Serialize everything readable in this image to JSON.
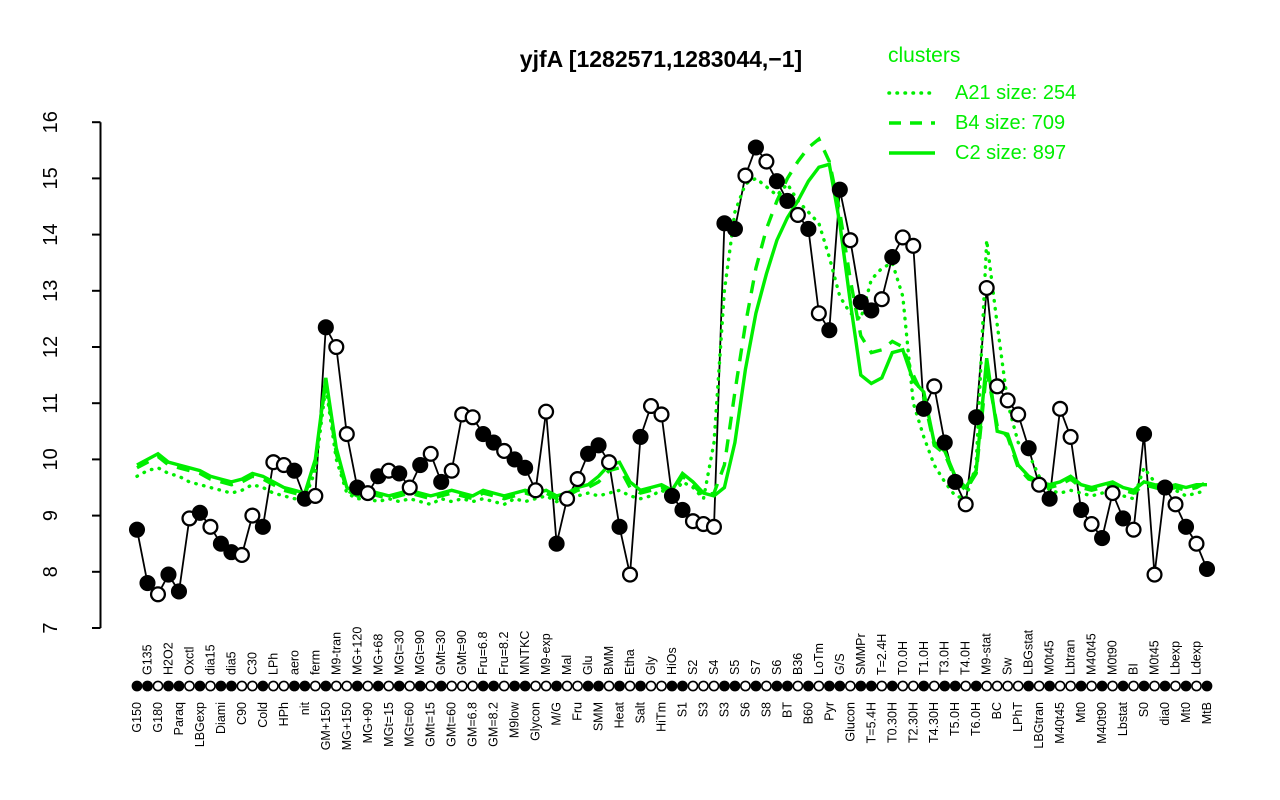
{
  "chart_data": {
    "type": "line",
    "title": "yjfA [1282571,1283044,−1]",
    "colors": {
      "cluster": "#00ee00",
      "expression": "#000000",
      "background": "#ffffff"
    },
    "legend": {
      "title": "clusters",
      "entries": [
        {
          "label": "A21 size: 254",
          "style": "dotted"
        },
        {
          "label": "B4 size: 709",
          "style": "dashed"
        },
        {
          "label": "C2 size: 897",
          "style": "solid"
        }
      ]
    },
    "y_axis": {
      "range": [
        7,
        16
      ],
      "ticks": [
        7,
        8,
        9,
        10,
        11,
        12,
        13,
        14,
        15,
        16
      ]
    },
    "x_axis": {
      "conditions": [
        {
          "l": "G150",
          "s": "b"
        },
        {
          "l": "G135",
          "s": "t"
        },
        {
          "l": "G180",
          "s": "b"
        },
        {
          "l": "H2O2",
          "s": "t"
        },
        {
          "l": "Paraq",
          "s": "b"
        },
        {
          "l": "Oxctl",
          "s": "t"
        },
        {
          "l": "LBGexp",
          "s": "b"
        },
        {
          "l": "dia15",
          "s": "t"
        },
        {
          "l": "Diami",
          "s": "b"
        },
        {
          "l": "dia5",
          "s": "t"
        },
        {
          "l": "C90",
          "s": "b"
        },
        {
          "l": "C30",
          "s": "t"
        },
        {
          "l": "Cold",
          "s": "b"
        },
        {
          "l": "LPh",
          "s": "t"
        },
        {
          "l": "HPh",
          "s": "b"
        },
        {
          "l": "aero",
          "s": "t"
        },
        {
          "l": "nit",
          "s": "b"
        },
        {
          "l": "ferm",
          "s": "t"
        },
        {
          "l": "GM+150",
          "s": "b"
        },
        {
          "l": "M9-tran",
          "s": "t"
        },
        {
          "l": "MG+150",
          "s": "b"
        },
        {
          "l": "MG+120",
          "s": "t"
        },
        {
          "l": "MG+90",
          "s": "b"
        },
        {
          "l": "MG+68",
          "s": "t"
        },
        {
          "l": "MGt=15",
          "s": "b"
        },
        {
          "l": "MGt=30",
          "s": "t"
        },
        {
          "l": "MGt=60",
          "s": "b"
        },
        {
          "l": "MGt=90",
          "s": "t"
        },
        {
          "l": "GMt=15",
          "s": "b"
        },
        {
          "l": "GMt=30",
          "s": "t"
        },
        {
          "l": "GMt=60",
          "s": "b"
        },
        {
          "l": "GMt=90",
          "s": "t"
        },
        {
          "l": "GM=6.8",
          "s": "b"
        },
        {
          "l": "Fru=6.8",
          "s": "t"
        },
        {
          "l": "GM=8.2",
          "s": "b"
        },
        {
          "l": "Fru=8.2",
          "s": "t"
        },
        {
          "l": "M9low",
          "s": "b"
        },
        {
          "l": "MNTKC",
          "s": "t"
        },
        {
          "l": "Glycon",
          "s": "b"
        },
        {
          "l": "M9-exp",
          "s": "t"
        },
        {
          "l": "M/G",
          "s": "b"
        },
        {
          "l": "Mal",
          "s": "t"
        },
        {
          "l": "Fru",
          "s": "b"
        },
        {
          "l": "Glu",
          "s": "t"
        },
        {
          "l": "SMM",
          "s": "b"
        },
        {
          "l": "BMM",
          "s": "t"
        },
        {
          "l": "Heat",
          "s": "b"
        },
        {
          "l": "Etha",
          "s": "t"
        },
        {
          "l": "Salt",
          "s": "b"
        },
        {
          "l": "Gly",
          "s": "t"
        },
        {
          "l": "HiTm",
          "s": "b"
        },
        {
          "l": "HiOs",
          "s": "t"
        },
        {
          "l": "S1",
          "s": "b"
        },
        {
          "l": "S2",
          "s": "t"
        },
        {
          "l": "S3",
          "s": "b"
        },
        {
          "l": "S4",
          "s": "t"
        },
        {
          "l": "S3",
          "s": "b"
        },
        {
          "l": "S5",
          "s": "t"
        },
        {
          "l": "S6",
          "s": "b"
        },
        {
          "l": "S7",
          "s": "t"
        },
        {
          "l": "S8",
          "s": "b"
        },
        {
          "l": "S6",
          "s": "t"
        },
        {
          "l": "BT",
          "s": "b"
        },
        {
          "l": "B36",
          "s": "t"
        },
        {
          "l": "B60",
          "s": "b"
        },
        {
          "l": "LoTm",
          "s": "t"
        },
        {
          "l": "Pyr",
          "s": "b"
        },
        {
          "l": "G/S",
          "s": "t"
        },
        {
          "l": "Glucon",
          "s": "b"
        },
        {
          "l": "SMMPr",
          "s": "t"
        },
        {
          "l": "T=5.4H",
          "s": "b"
        },
        {
          "l": "T=2.4H",
          "s": "t"
        },
        {
          "l": "T0.30H",
          "s": "b"
        },
        {
          "l": "T0.0H",
          "s": "t"
        },
        {
          "l": "T2.30H",
          "s": "b"
        },
        {
          "l": "T1.0H",
          "s": "t"
        },
        {
          "l": "T4.30H",
          "s": "b"
        },
        {
          "l": "T3.0H",
          "s": "t"
        },
        {
          "l": "T5.0H",
          "s": "b"
        },
        {
          "l": "T4.0H",
          "s": "t"
        },
        {
          "l": "T6.0H",
          "s": "b"
        },
        {
          "l": "M9-stat",
          "s": "t"
        },
        {
          "l": "BC",
          "s": "b"
        },
        {
          "l": "Sw",
          "s": "t"
        },
        {
          "l": "LPhT",
          "s": "b"
        },
        {
          "l": "LBGstat",
          "s": "t"
        },
        {
          "l": "LBGtran",
          "s": "b"
        },
        {
          "l": "M0t45",
          "s": "t"
        },
        {
          "l": "M40t45",
          "s": "b"
        },
        {
          "l": "Lbtran",
          "s": "t"
        },
        {
          "l": "Mt0",
          "s": "b"
        },
        {
          "l": "M40t45",
          "s": "t"
        },
        {
          "l": "M40t90",
          "s": "b"
        },
        {
          "l": "M0t90",
          "s": "t"
        },
        {
          "l": "Lbstat",
          "s": "b"
        },
        {
          "l": "BI",
          "s": "t"
        },
        {
          "l": "S0",
          "s": "b"
        },
        {
          "l": "M0t45",
          "s": "t"
        },
        {
          "l": "dia0",
          "s": "b"
        },
        {
          "l": "Lbexp",
          "s": "t"
        },
        {
          "l": "Mt0",
          "s": "b"
        },
        {
          "l": "Ldexp",
          "s": "t"
        },
        {
          "l": "MtB",
          "s": "b"
        }
      ]
    },
    "series": [
      {
        "name": "yjfA expression",
        "style": "black line with circle markers",
        "values": [
          8.75,
          7.8,
          7.6,
          7.95,
          7.65,
          8.95,
          9.05,
          8.8,
          8.5,
          8.35,
          8.3,
          9.0,
          8.8,
          9.95,
          9.9,
          9.8,
          9.3,
          9.35,
          12.35,
          12.0,
          10.45,
          9.5,
          9.4,
          9.7,
          9.8,
          9.75,
          9.5,
          9.9,
          10.1,
          9.6,
          9.8,
          10.8,
          10.75,
          10.45,
          10.3,
          10.15,
          10.0,
          9.85,
          9.45,
          10.85,
          8.5,
          9.3,
          9.65,
          10.1,
          10.25,
          9.95,
          8.8,
          7.95,
          10.4,
          10.95,
          10.8,
          9.35,
          9.1,
          8.9,
          8.85,
          8.8,
          14.2,
          14.1,
          15.05,
          15.55,
          15.3,
          14.95,
          14.6,
          14.35,
          14.1,
          12.6,
          12.3,
          14.8,
          13.9,
          12.8,
          12.65,
          12.85,
          13.6,
          13.95,
          13.8,
          10.9,
          11.3,
          10.3,
          9.6,
          9.2,
          10.75,
          13.05,
          11.3,
          11.05,
          10.8,
          10.2,
          9.55,
          9.3,
          10.9,
          10.4,
          9.1,
          8.85,
          8.6,
          9.4,
          8.95,
          8.75,
          10.45,
          7.95,
          9.5,
          9.2,
          8.8,
          8.5,
          8.05
        ],
        "markers": [
          "f",
          "f",
          "o",
          "f",
          "f",
          "o",
          "f",
          "o",
          "f",
          "f",
          "o",
          "o",
          "f",
          "o",
          "o",
          "f",
          "f",
          "o",
          "f",
          "o",
          "o",
          "f",
          "o",
          "f",
          "o",
          "f",
          "o",
          "f",
          "o",
          "f",
          "o",
          "o",
          "o",
          "f",
          "f",
          "o",
          "f",
          "f",
          "o",
          "o",
          "f",
          "o",
          "o",
          "f",
          "f",
          "o",
          "f",
          "o",
          "f",
          "o",
          "o",
          "f",
          "f",
          "o",
          "o",
          "o",
          "f",
          "f",
          "o",
          "f",
          "o",
          "f",
          "f",
          "o",
          "f",
          "o",
          "f",
          "f",
          "o",
          "f",
          "f",
          "o",
          "f",
          "o",
          "o",
          "f",
          "o",
          "f",
          "f",
          "o",
          "f",
          "o",
          "o",
          "o",
          "o",
          "f",
          "o",
          "f",
          "o",
          "o",
          "f",
          "o",
          "f",
          "o",
          "f",
          "o",
          "f",
          "o",
          "f",
          "o",
          "f",
          "o",
          "f"
        ]
      },
      {
        "name": "A21",
        "size": 254,
        "style": "dotted",
        "values": [
          9.7,
          9.8,
          9.85,
          9.75,
          9.7,
          9.6,
          9.55,
          9.5,
          9.45,
          9.4,
          9.45,
          9.55,
          9.5,
          9.4,
          9.35,
          9.3,
          9.3,
          9.8,
          11.3,
          10.0,
          9.4,
          9.3,
          9.3,
          9.25,
          9.3,
          9.25,
          9.3,
          9.25,
          9.2,
          9.3,
          9.25,
          9.3,
          9.25,
          9.3,
          9.25,
          9.2,
          9.3,
          9.25,
          9.3,
          9.35,
          9.25,
          9.3,
          9.35,
          9.4,
          9.35,
          9.4,
          9.45,
          9.35,
          9.3,
          9.35,
          9.45,
          9.35,
          9.6,
          9.5,
          9.3,
          10.3,
          13.0,
          14.4,
          14.9,
          15.0,
          14.85,
          14.7,
          14.9,
          14.6,
          14.4,
          14.2,
          13.6,
          12.9,
          12.6,
          12.5,
          13.2,
          13.4,
          13.5,
          12.9,
          11.0,
          10.4,
          9.9,
          9.6,
          9.35,
          9.3,
          9.9,
          13.9,
          12.4,
          11.0,
          10.3,
          10.1,
          9.7,
          9.45,
          9.4,
          9.45,
          9.4,
          9.35,
          9.4,
          9.45,
          9.35,
          9.3,
          9.85,
          9.6,
          9.4,
          9.45,
          9.35,
          9.4,
          9.45
        ]
      },
      {
        "name": "B4",
        "size": 709,
        "style": "dashed",
        "values": [
          9.85,
          9.95,
          10.05,
          9.9,
          9.85,
          9.8,
          9.75,
          9.65,
          9.6,
          9.55,
          9.6,
          9.7,
          9.65,
          9.55,
          9.45,
          9.4,
          9.35,
          9.95,
          11.4,
          10.1,
          9.45,
          9.35,
          9.4,
          9.35,
          9.3,
          9.35,
          9.4,
          9.35,
          9.3,
          9.35,
          9.4,
          9.35,
          9.3,
          9.4,
          9.35,
          9.3,
          9.35,
          9.4,
          9.35,
          9.4,
          9.3,
          9.35,
          9.45,
          9.5,
          9.6,
          9.8,
          9.85,
          9.5,
          9.4,
          9.45,
          9.5,
          9.4,
          9.7,
          9.55,
          9.35,
          9.4,
          9.9,
          11.2,
          12.4,
          13.4,
          14.1,
          14.6,
          15.0,
          15.3,
          15.55,
          15.7,
          15.3,
          14.4,
          13.2,
          12.2,
          11.9,
          11.95,
          12.1,
          12.0,
          11.5,
          11.1,
          10.25,
          10.1,
          9.65,
          9.45,
          9.75,
          11.6,
          10.6,
          10.4,
          9.85,
          9.65,
          9.6,
          9.5,
          9.55,
          9.65,
          9.5,
          9.45,
          9.5,
          9.55,
          9.45,
          9.4,
          9.55,
          9.5,
          9.45,
          9.5,
          9.45,
          9.5,
          9.6
        ]
      },
      {
        "name": "C2",
        "size": 897,
        "style": "solid",
        "values": [
          9.9,
          10.0,
          10.1,
          9.95,
          9.9,
          9.85,
          9.8,
          9.7,
          9.65,
          9.6,
          9.65,
          9.75,
          9.7,
          9.6,
          9.5,
          9.45,
          9.4,
          10.0,
          11.45,
          10.2,
          9.5,
          9.4,
          9.45,
          9.4,
          9.35,
          9.4,
          9.45,
          9.4,
          9.35,
          9.4,
          9.45,
          9.4,
          9.35,
          9.45,
          9.4,
          9.35,
          9.4,
          9.45,
          9.4,
          9.45,
          9.35,
          9.4,
          9.5,
          9.55,
          9.7,
          9.9,
          9.95,
          9.6,
          9.45,
          9.5,
          9.55,
          9.45,
          9.75,
          9.6,
          9.4,
          9.35,
          9.5,
          10.3,
          11.6,
          12.6,
          13.3,
          13.9,
          14.3,
          14.6,
          14.95,
          15.2,
          15.25,
          14.2,
          12.8,
          11.5,
          11.35,
          11.45,
          11.9,
          11.95,
          11.4,
          11.2,
          10.3,
          10.15,
          9.7,
          9.5,
          9.8,
          11.8,
          10.5,
          10.45,
          9.9,
          9.7,
          9.6,
          9.55,
          9.6,
          9.7,
          9.55,
          9.5,
          9.55,
          9.6,
          9.5,
          9.45,
          9.6,
          9.55,
          9.5,
          9.55,
          9.5,
          9.55,
          9.55
        ]
      }
    ]
  }
}
